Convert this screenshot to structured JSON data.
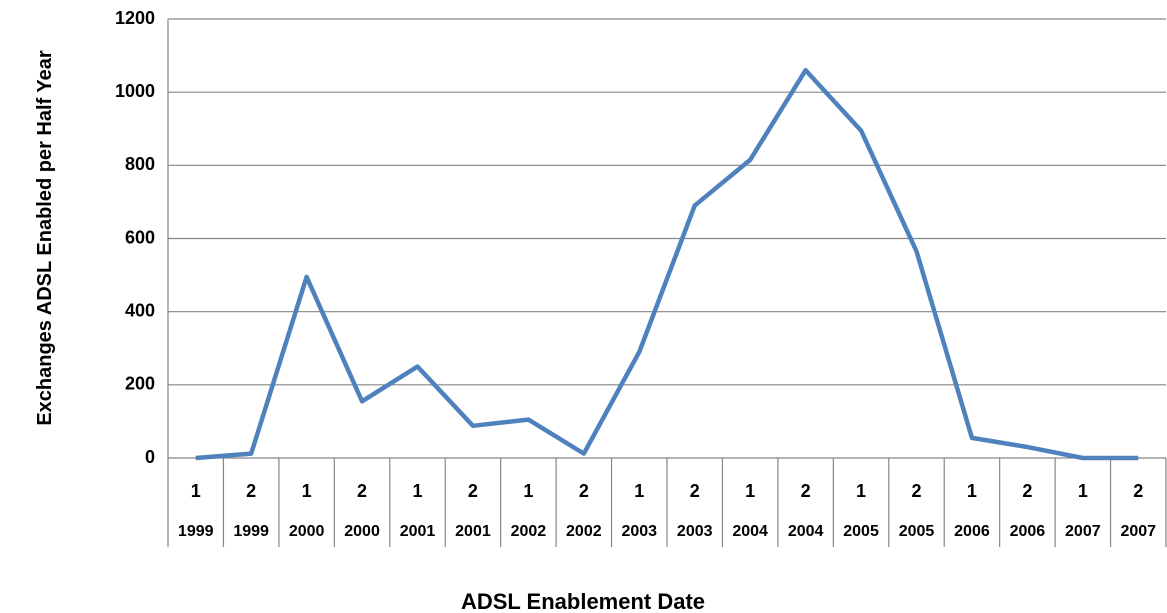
{
  "chart_data": {
    "type": "line",
    "x_label": "ADSL Enablement Date",
    "y_label": "Exchanges ADSL Enabled per Half Year",
    "categories": [
      "1",
      "2",
      "1",
      "2",
      "1",
      "2",
      "1",
      "2",
      "1",
      "2",
      "1",
      "2",
      "1",
      "2",
      "1",
      "2",
      "1",
      "2"
    ],
    "category_groups": [
      "1999",
      "1999",
      "2000",
      "2000",
      "2001",
      "2001",
      "2002",
      "2002",
      "2003",
      "2003",
      "2004",
      "2004",
      "2005",
      "2005",
      "2006",
      "2006",
      "2007",
      "2007"
    ],
    "values": [
      0,
      12,
      495,
      155,
      250,
      88,
      105,
      12,
      290,
      690,
      815,
      1060,
      895,
      565,
      55,
      30,
      0,
      0
    ],
    "color": "#4f81bd",
    "ylim": [
      0,
      1200
    ],
    "yticks": [
      0,
      200,
      400,
      600,
      800,
      1000,
      1200
    ],
    "grid": true
  }
}
